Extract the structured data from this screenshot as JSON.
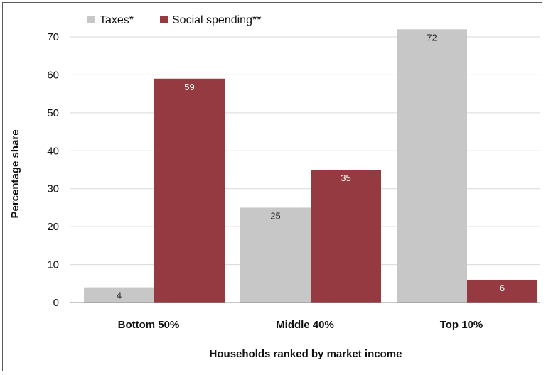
{
  "chart_data": {
    "type": "bar",
    "title": "",
    "xlabel": "Households ranked by market income",
    "ylabel": "Percentage share",
    "categories": [
      "Bottom 50%",
      "Middle 40%",
      "Top 10%"
    ],
    "ylim": [
      0,
      70
    ],
    "yticks": [
      0,
      10,
      20,
      30,
      40,
      50,
      60,
      70
    ],
    "grid": true,
    "legend_position": "top-left",
    "series": [
      {
        "name": "Taxes*",
        "color": "#c7c7c7",
        "label_color": "#222222",
        "values": [
          4,
          25,
          72
        ],
        "labels": [
          "4",
          "25",
          "72"
        ]
      },
      {
        "name": "Social spending**",
        "color": "#953a40",
        "label_color": "#ffffff",
        "values": [
          59,
          35,
          6
        ],
        "labels": [
          "59",
          "35",
          "6"
        ]
      }
    ]
  }
}
